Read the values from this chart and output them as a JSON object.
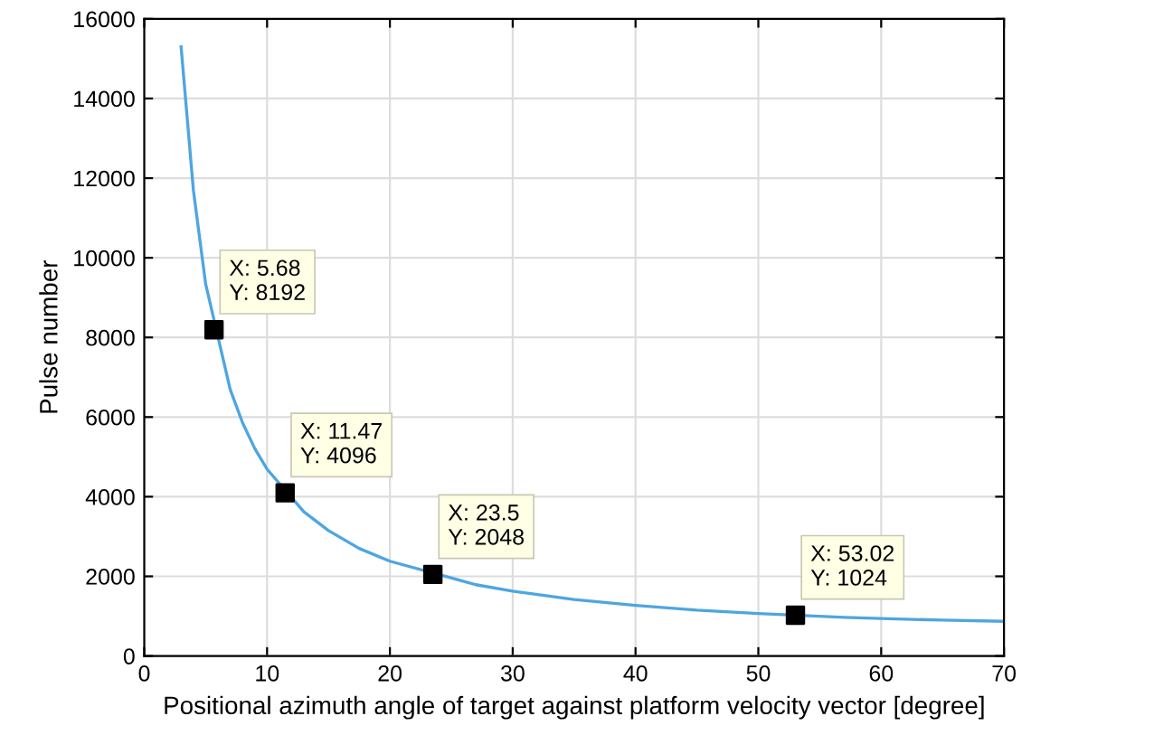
{
  "chart_data": {
    "type": "line",
    "xlabel": "Positional azimuth angle of target against platform velocity vector [degree]",
    "ylabel": "Pulse number",
    "xlim": [
      0,
      70
    ],
    "ylim": [
      0,
      16000
    ],
    "xticks": [
      0,
      10,
      20,
      30,
      40,
      50,
      60,
      70
    ],
    "yticks": [
      0,
      2000,
      4000,
      6000,
      8000,
      10000,
      12000,
      14000,
      16000
    ],
    "grid": true,
    "series": [
      {
        "color": "#4da6e0",
        "x": [
          3,
          4,
          5,
          7,
          8,
          9,
          10,
          13,
          15,
          17.5,
          20,
          27,
          30,
          35,
          40,
          45,
          50,
          57,
          60,
          65,
          70
        ],
        "values": [
          15300,
          11700,
          9340,
          6690,
          5860,
          5210,
          4690,
          3620,
          3150,
          2700,
          2380,
          1790,
          1630,
          1420,
          1270,
          1150,
          1065,
          970,
          940,
          900,
          870
        ]
      },
      {
        "type": "scatter",
        "color": "#000000",
        "marker": "square",
        "x": [
          5.68,
          11.47,
          23.5,
          53.02
        ],
        "values": [
          8192,
          4096,
          2048,
          1024
        ]
      }
    ],
    "annotations": [
      {
        "text": "X: 5.68\nY: 8192",
        "x": 5.68,
        "y": 8192
      },
      {
        "text": "X: 11.47\nY: 4096",
        "x": 11.47,
        "y": 4096
      },
      {
        "text": "X: 23.5\nY: 2048",
        "x": 23.5,
        "y": 2048
      },
      {
        "text": "X: 53.02\nY: 1024",
        "x": 53.02,
        "y": 1024
      }
    ]
  }
}
